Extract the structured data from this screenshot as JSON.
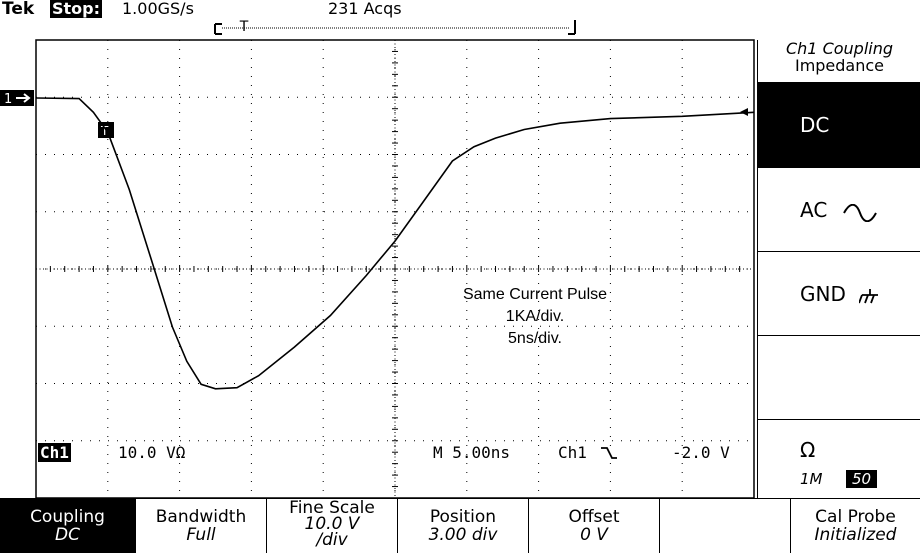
{
  "status": {
    "brand": "Tek",
    "run_state": "Stop:",
    "sample_rate": "1.00GS/s",
    "acq_count": "231 Acqs",
    "record_marker": "T"
  },
  "waveform": {
    "channel_marker": "1",
    "trigger_marker": "T",
    "annotation": [
      "Same Current Pulse",
      "1KA/div.",
      "5ns/div."
    ],
    "trace_points": [
      [
        0,
        0
      ],
      [
        0.6,
        -0.01
      ],
      [
        0.8,
        -0.25
      ],
      [
        1,
        -0.6
      ],
      [
        1.3,
        -1.6
      ],
      [
        1.6,
        -2.8
      ],
      [
        1.9,
        -4.0
      ],
      [
        2.1,
        -4.6
      ],
      [
        2.3,
        -5.0
      ],
      [
        2.5,
        -5.08
      ],
      [
        2.8,
        -5.06
      ],
      [
        3.1,
        -4.85
      ],
      [
        3.6,
        -4.35
      ],
      [
        4.1,
        -3.8
      ],
      [
        4.6,
        -3.1
      ],
      [
        5.0,
        -2.5
      ],
      [
        5.4,
        -1.8
      ],
      [
        5.8,
        -1.1
      ],
      [
        6.1,
        -0.85
      ],
      [
        6.4,
        -0.7
      ],
      [
        6.8,
        -0.55
      ],
      [
        7.3,
        -0.44
      ],
      [
        8.0,
        -0.36
      ],
      [
        9.0,
        -0.32
      ],
      [
        10,
        -0.25
      ]
    ]
  },
  "readouts": {
    "channel": "Ch1",
    "volts_div": "10.0 V",
    "ohm_symbol": "Ω",
    "timebase": "M 5.00ns",
    "trigger_source": "Ch1",
    "trigger_slope_icon": "falling-edge-icon",
    "trigger_level": "-2.0 V"
  },
  "side_menu": {
    "title_line1": "Ch1 Coupling",
    "title_line2": "Impedance",
    "dc": "DC",
    "ac": "AC",
    "gnd": "GND",
    "impedance_symbol": "Ω",
    "impedance_1m": "1M",
    "impedance_50": "50"
  },
  "bottom_menu": {
    "coupling": {
      "label": "Coupling",
      "value": "DC"
    },
    "bandwidth": {
      "label": "Bandwidth",
      "value": "Full"
    },
    "fine_scale": {
      "label": "Fine Scale",
      "value": "10.0 V",
      "value2": "/div"
    },
    "position": {
      "label": "Position",
      "value": "3.00 div"
    },
    "offset": {
      "label": "Offset",
      "value": "0 V"
    },
    "cal_probe": {
      "label": "Cal Probe",
      "value": "Initialized"
    }
  },
  "colors": {
    "foreground": "#000000",
    "background": "#ffffff"
  }
}
